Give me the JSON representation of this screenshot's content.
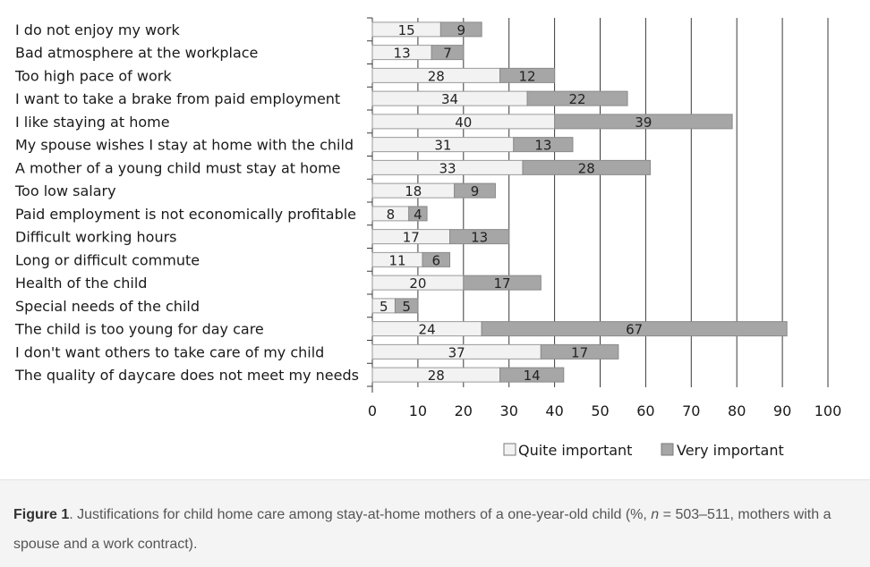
{
  "chart_data": {
    "type": "bar",
    "orientation": "horizontal",
    "stacked": true,
    "categories": [
      "I do not enjoy my work",
      "Bad atmosphere at the workplace",
      "Too high pace of work",
      "I want to take a brake from paid employment",
      "I like staying at home",
      "My spouse wishes I stay at home with the child",
      "A mother of a young child must stay at home",
      "Too low salary",
      "Paid employment is not economically profitable",
      "Difficult working hours",
      "Long or difficult commute",
      "Health of the child",
      "Special needs of the child",
      "The child is too young for day care",
      "I don't want others to take care of my child",
      "The quality of daycare does not meet my needs"
    ],
    "series": [
      {
        "name": "Quite important",
        "color": "#f2f2f2",
        "values": [
          15,
          13,
          28,
          34,
          40,
          31,
          33,
          18,
          8,
          17,
          11,
          20,
          5,
          24,
          37,
          28
        ]
      },
      {
        "name": "Very important",
        "color": "#a6a6a6",
        "values": [
          9,
          7,
          12,
          22,
          39,
          13,
          28,
          9,
          4,
          13,
          6,
          17,
          5,
          67,
          17,
          14
        ]
      }
    ],
    "xlim": [
      0,
      100
    ],
    "xticks": [
      0,
      10,
      20,
      30,
      40,
      50,
      60,
      70,
      80,
      90,
      100
    ],
    "grid": true,
    "legend_position": "bottom"
  },
  "caption": {
    "label": "Figure 1",
    "text_before_n": ". Justifications for child home care among stay-at-home mothers of a one-year-old child (%, ",
    "n_symbol": "n",
    "text_after_n": " = 503–511, mothers with a spouse and a work contract)."
  }
}
